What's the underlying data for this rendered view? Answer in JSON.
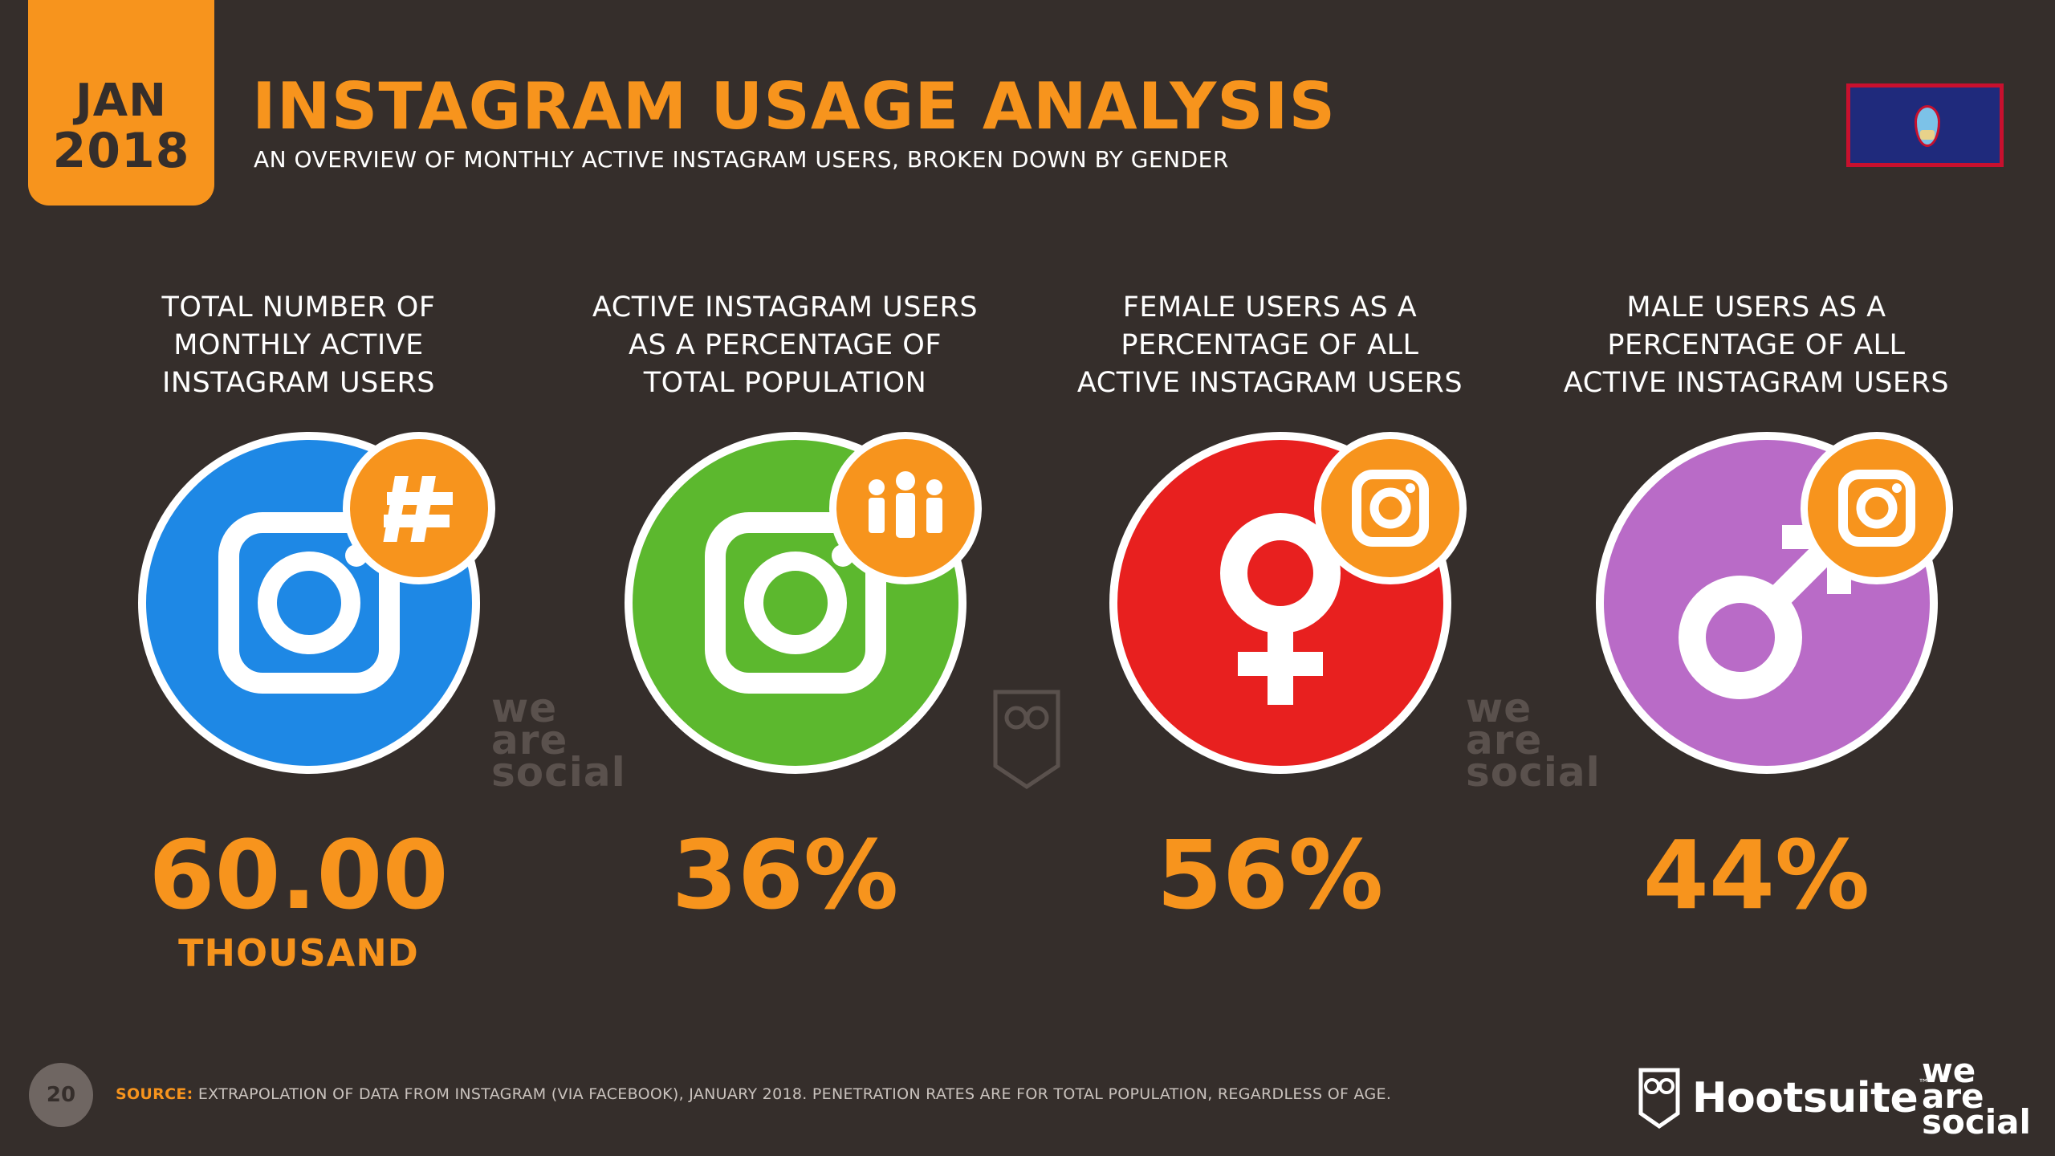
{
  "header": {
    "month": "JAN",
    "year": "2018",
    "title": "INSTAGRAM USAGE ANALYSIS",
    "subtitle": "AN OVERVIEW OF MONTHLY ACTIVE INSTAGRAM USERS, BROKEN DOWN BY GENDER",
    "flag_icon": "guam-flag-icon"
  },
  "stats": [
    {
      "label_lines": [
        "TOTAL NUMBER OF",
        "MONTHLY ACTIVE",
        "INSTAGRAM USERS"
      ],
      "value": "60.00",
      "unit": "THOUSAND",
      "circle_color": "#1e88e5",
      "main_icon": "instagram-icon",
      "badge_icon": "hashtag-icon"
    },
    {
      "label_lines": [
        "ACTIVE INSTAGRAM USERS",
        "AS A PERCENTAGE OF",
        "TOTAL POPULATION"
      ],
      "value": "36%",
      "unit": "",
      "circle_color": "#5cb82e",
      "main_icon": "instagram-icon",
      "badge_icon": "people-icon"
    },
    {
      "label_lines": [
        "FEMALE USERS AS A",
        "PERCENTAGE OF ALL",
        "ACTIVE INSTAGRAM USERS"
      ],
      "value": "56%",
      "unit": "",
      "circle_color": "#e8201f",
      "main_icon": "female-symbol-icon",
      "badge_icon": "instagram-icon"
    },
    {
      "label_lines": [
        "MALE USERS AS A",
        "PERCENTAGE OF ALL",
        "ACTIVE INSTAGRAM USERS"
      ],
      "value": "44%",
      "unit": "",
      "circle_color": "#b96bc7",
      "main_icon": "male-symbol-icon",
      "badge_icon": "instagram-icon"
    }
  ],
  "watermarks": {
    "we": "we",
    "are": "are",
    "social": "social"
  },
  "footer": {
    "page_number": "20",
    "source_label": "SOURCE:",
    "source_text": "EXTRAPOLATION OF DATA FROM INSTAGRAM (VIA FACEBOOK), JANUARY 2018. PENETRATION RATES ARE FOR TOTAL POPULATION, REGARDLESS OF AGE.",
    "hootsuite": "Hootsuite",
    "tm": "™",
    "logo_we": "we",
    "logo_are": "are",
    "logo_social": "social"
  },
  "colors": {
    "background": "#352e2b",
    "accent": "#f7941d"
  }
}
